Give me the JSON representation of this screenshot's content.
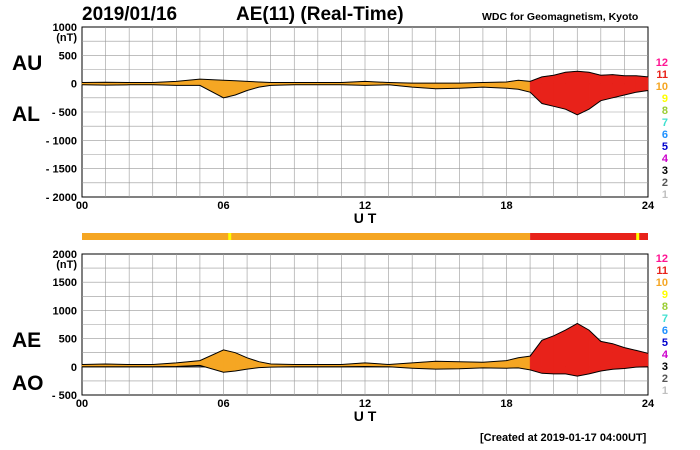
{
  "header": {
    "date": "2019/01/16",
    "title": "AE(11) (Real-Time)",
    "source": "WDC for Geomagnetism, Kyoto"
  },
  "footer": {
    "created": "[Created at 2019-01-17 04:00UT]"
  },
  "labels": {
    "au": "AU",
    "al": "AL",
    "ae": "AE",
    "ao": "AO"
  },
  "activity_levels": [
    "12",
    "11",
    "10",
    "9",
    "8",
    "7",
    "6",
    "5",
    "4",
    "3",
    "2",
    "1"
  ],
  "activity_colors": [
    "#ff1493",
    "#e8221a",
    "#f5a623",
    "#ffff00",
    "#9acd32",
    "#40e0d0",
    "#1e90ff",
    "#0000cd",
    "#cc00cc",
    "#000000",
    "#555555",
    "#c0c0c0"
  ],
  "chart_data": [
    {
      "type": "area",
      "title": "AU / AL",
      "xlabel": "U T",
      "ylabel": "(nT)",
      "xlim": [
        0,
        24
      ],
      "ylim": [
        -2000,
        1000
      ],
      "xticks": [
        "00",
        "06",
        "12",
        "18",
        "24"
      ],
      "yticks": [
        "1000",
        "500",
        "0",
        "- 500",
        "- 1000",
        "- 1500",
        "- 2000"
      ],
      "x": [
        0,
        1,
        2,
        3,
        4,
        5,
        6,
        6.5,
        7,
        7.5,
        8,
        9,
        10,
        11,
        12,
        13,
        14,
        15,
        16,
        17,
        18,
        18.5,
        19,
        19.5,
        20,
        20.5,
        21,
        21.5,
        22,
        22.5,
        23,
        23.5,
        24
      ],
      "series": [
        {
          "name": "AU",
          "values": [
            20,
            25,
            20,
            20,
            40,
            80,
            60,
            50,
            40,
            30,
            20,
            20,
            20,
            20,
            40,
            20,
            10,
            10,
            10,
            20,
            30,
            60,
            40,
            120,
            150,
            200,
            220,
            200,
            150,
            160,
            140,
            140,
            120
          ]
        },
        {
          "name": "AL",
          "values": [
            -20,
            -25,
            -20,
            -20,
            -30,
            -30,
            -250,
            -200,
            -120,
            -60,
            -30,
            -20,
            -20,
            -20,
            -30,
            -20,
            -60,
            -90,
            -80,
            -60,
            -80,
            -100,
            -150,
            -350,
            -400,
            -450,
            -550,
            -450,
            -300,
            -250,
            -200,
            -150,
            -120
          ]
        }
      ]
    },
    {
      "type": "area",
      "title": "AE / AO",
      "xlabel": "U T",
      "ylabel": "(nT)",
      "xlim": [
        0,
        24
      ],
      "ylim": [
        -500,
        2000
      ],
      "xticks": [
        "00",
        "06",
        "12",
        "18",
        "24"
      ],
      "yticks": [
        "2000",
        "1500",
        "1000",
        "500",
        "0",
        "- 500"
      ],
      "x": [
        0,
        1,
        2,
        3,
        4,
        5,
        6,
        6.5,
        7,
        7.5,
        8,
        9,
        10,
        11,
        12,
        13,
        14,
        15,
        16,
        17,
        18,
        18.5,
        19,
        19.5,
        20,
        20.5,
        21,
        21.5,
        22,
        22.5,
        23,
        23.5,
        24
      ],
      "series": [
        {
          "name": "AE",
          "values": [
            40,
            50,
            40,
            40,
            70,
            110,
            300,
            250,
            160,
            90,
            50,
            40,
            40,
            40,
            70,
            40,
            70,
            100,
            90,
            80,
            110,
            160,
            190,
            470,
            550,
            650,
            770,
            650,
            450,
            410,
            340,
            290,
            240
          ]
        },
        {
          "name": "AO",
          "values": [
            0,
            0,
            0,
            0,
            5,
            25,
            -95,
            -75,
            -40,
            -15,
            -5,
            0,
            0,
            0,
            5,
            0,
            -25,
            -40,
            -35,
            -20,
            -25,
            -20,
            -55,
            -115,
            -125,
            -125,
            -165,
            -125,
            -75,
            -45,
            -30,
            -5,
            0
          ]
        }
      ]
    }
  ]
}
